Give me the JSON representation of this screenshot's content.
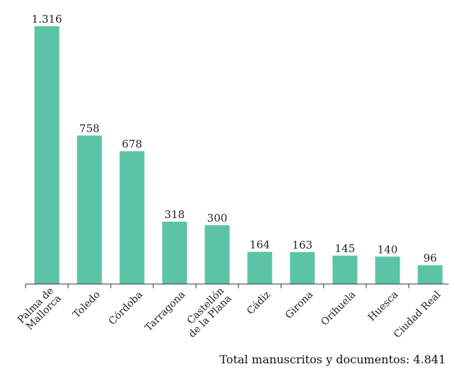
{
  "chart_data": {
    "type": "bar",
    "categories": [
      "Palma de Mallorca",
      "Toledo",
      "Córdoba",
      "Tarragona",
      "Castellón de la Plana",
      "Cádiz",
      "Girona",
      "Orihuela",
      "Huesca",
      "Ciudad Real"
    ],
    "category_lines": [
      [
        "Palma de",
        "Mallorca"
      ],
      [
        "Toledo"
      ],
      [
        "Córdoba"
      ],
      [
        "Tarragona"
      ],
      [
        "Castellón",
        "de la Plana"
      ],
      [
        "Cádiz"
      ],
      [
        "Girona"
      ],
      [
        "Orihuela"
      ],
      [
        "Huesca"
      ],
      [
        "Ciudad Real"
      ]
    ],
    "values": [
      1316,
      758,
      678,
      318,
      300,
      164,
      163,
      145,
      140,
      96
    ],
    "value_labels": [
      "1.316",
      "758",
      "678",
      "318",
      "300",
      "164",
      "163",
      "145",
      "140",
      "96"
    ],
    "title": "",
    "xlabel": "",
    "ylabel": "",
    "ylim": [
      0,
      1316
    ],
    "grid": false,
    "bar_color": "#5cc4a6"
  },
  "footer": {
    "total_text": "Total manuscritos y documentos: 4.841"
  }
}
